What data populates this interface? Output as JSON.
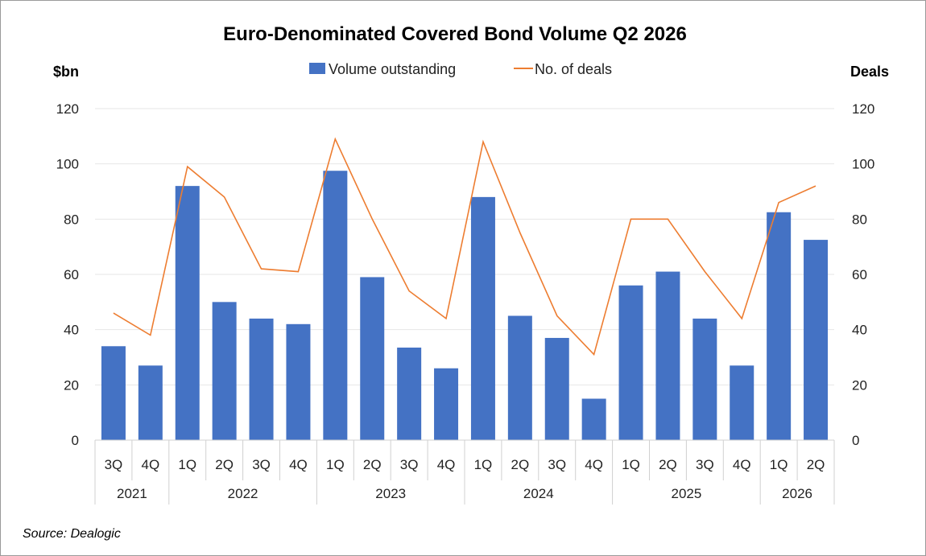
{
  "chart_data": {
    "type": "bar",
    "title": "Euro-Denominated Covered Bond Volume Q2 2026",
    "ylabel_left": "$bn",
    "ylabel_right": "Deals",
    "ylim_left": [
      0,
      120
    ],
    "ylim_right": [
      0,
      120
    ],
    "yticks_left": [
      "0",
      "20",
      "40",
      "60",
      "80",
      "100",
      "120"
    ],
    "yticks_right": [
      "0",
      "20",
      "40",
      "60",
      "80",
      "100",
      "120"
    ],
    "grid": true,
    "legend_position": "top-center",
    "quarters": [
      "3Q",
      "4Q",
      "1Q",
      "2Q",
      "3Q",
      "4Q",
      "1Q",
      "2Q",
      "3Q",
      "4Q",
      "1Q",
      "2Q",
      "3Q",
      "4Q",
      "1Q",
      "2Q",
      "3Q",
      "4Q",
      "1Q",
      "2Q"
    ],
    "year_groups": [
      {
        "label": "2021",
        "count": 2
      },
      {
        "label": "2022",
        "count": 4
      },
      {
        "label": "2023",
        "count": 4
      },
      {
        "label": "2024",
        "count": 4
      },
      {
        "label": "2025",
        "count": 4
      },
      {
        "label": "2026",
        "count": 2
      }
    ],
    "series": [
      {
        "name": "Volume outstanding",
        "type": "bar",
        "axis": "left",
        "color": "#4472C4",
        "values": [
          34,
          27,
          92,
          50,
          44,
          42,
          97.5,
          59,
          33.5,
          26,
          88,
          45,
          37,
          15,
          56,
          61,
          44,
          27,
          82.5,
          72.5
        ]
      },
      {
        "name": "No. of deals",
        "type": "line",
        "axis": "right",
        "color": "#ED7D31",
        "values": [
          46,
          38,
          99,
          88,
          62,
          61,
          109,
          80,
          54,
          44,
          108,
          75,
          45,
          31,
          80,
          80,
          61,
          44,
          86,
          92
        ]
      }
    ]
  },
  "source": "Source: Dealogic"
}
